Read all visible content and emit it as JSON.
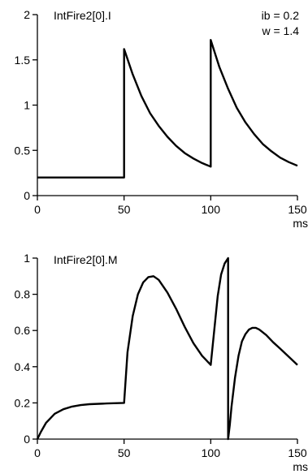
{
  "chart_data": [
    {
      "type": "line",
      "series_label": "IntFire2[0].I",
      "annotations": [
        "ib = 0.2",
        "w = 1.4"
      ],
      "xlabel": "ms",
      "ylabel": "",
      "xlim": [
        0,
        150
      ],
      "ylim": [
        0,
        2
      ],
      "xticks": [
        0,
        50,
        100,
        150
      ],
      "xtick_labels": [
        "0",
        "50",
        "100",
        "150"
      ],
      "yticks": [
        0,
        0.5,
        1,
        1.5,
        2
      ],
      "ytick_labels": [
        "0",
        "0.5",
        "1",
        "1.5",
        "2"
      ],
      "grid": false,
      "series": [
        {
          "x": [
            0,
            50,
            50,
            55,
            60,
            65,
            70,
            75,
            80,
            85,
            90,
            95,
            100,
            100,
            105,
            110,
            115,
            120,
            125,
            130,
            135,
            140,
            145,
            150
          ],
          "values": [
            0.2,
            0.2,
            1.62,
            1.34,
            1.1,
            0.91,
            0.77,
            0.65,
            0.55,
            0.47,
            0.41,
            0.36,
            0.32,
            1.72,
            1.42,
            1.18,
            0.97,
            0.81,
            0.68,
            0.57,
            0.49,
            0.42,
            0.37,
            0.33
          ]
        }
      ]
    },
    {
      "type": "line",
      "series_label": "IntFire2[0].M",
      "xlabel": "ms",
      "ylabel": "",
      "xlim": [
        0,
        150
      ],
      "ylim": [
        0,
        1
      ],
      "xticks": [
        0,
        50,
        100,
        150
      ],
      "xtick_labels": [
        "0",
        "50",
        "100",
        "150"
      ],
      "yticks": [
        0,
        0.2,
        0.4,
        0.6,
        0.8,
        1
      ],
      "ytick_labels": [
        "0",
        "0.2",
        "0.4",
        "0.6",
        "0.8",
        "1"
      ],
      "grid": false,
      "series": [
        {
          "x": [
            0,
            2,
            5,
            10,
            15,
            20,
            25,
            30,
            40,
            50,
            52,
            55,
            58,
            61,
            64,
            67,
            70,
            75,
            80,
            85,
            90,
            95,
            100,
            102,
            104,
            106,
            108,
            110,
            110,
            111,
            112,
            114,
            116,
            118,
            120,
            122,
            124,
            126,
            128,
            132,
            136,
            140,
            145,
            150
          ],
          "values": [
            0,
            0.04,
            0.09,
            0.14,
            0.165,
            0.18,
            0.188,
            0.193,
            0.197,
            0.2,
            0.48,
            0.68,
            0.8,
            0.865,
            0.895,
            0.9,
            0.88,
            0.81,
            0.72,
            0.62,
            0.53,
            0.46,
            0.41,
            0.6,
            0.79,
            0.91,
            0.97,
            1.0,
            0.0,
            0.08,
            0.18,
            0.34,
            0.46,
            0.54,
            0.58,
            0.605,
            0.615,
            0.615,
            0.605,
            0.575,
            0.535,
            0.5,
            0.455,
            0.41
          ]
        }
      ]
    }
  ]
}
